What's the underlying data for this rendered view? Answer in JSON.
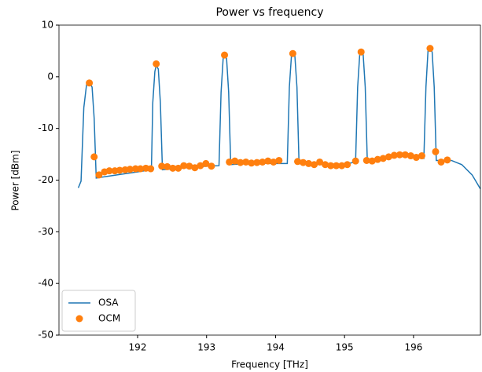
{
  "chart_data": {
    "type": "line",
    "title": "Power vs frequency",
    "x_label": "Frequency [THz]",
    "y_label": "Power [dBm]",
    "xlim": [
      190.86,
      196.97
    ],
    "ylim": [
      -50,
      10
    ],
    "xticks": [
      192,
      193,
      194,
      195,
      196
    ],
    "yticks": [
      -50,
      -40,
      -30,
      -20,
      -10,
      0,
      10
    ],
    "legend": "lower left",
    "series": [
      {
        "name": "OSA",
        "type": "line",
        "color": "#1f77b4",
        "x": [
          191.14,
          191.18,
          191.22,
          191.26,
          191.3,
          191.34,
          191.37,
          191.4,
          191.7,
          192.0,
          192.2,
          192.22,
          192.25,
          192.27,
          192.3,
          192.33,
          192.36,
          192.7,
          193.0,
          193.18,
          193.21,
          193.24,
          193.26,
          193.29,
          193.32,
          193.35,
          193.7,
          194.0,
          194.17,
          194.2,
          194.23,
          194.25,
          194.28,
          194.31,
          194.34,
          194.7,
          195.0,
          195.16,
          195.19,
          195.22,
          195.24,
          195.27,
          195.3,
          195.33,
          195.7,
          196.0,
          196.15,
          196.18,
          196.21,
          196.24,
          196.27,
          196.3,
          196.33,
          196.55,
          196.7,
          196.85,
          196.97
        ],
        "values": [
          -21.5,
          -20.2,
          -6,
          -1.5,
          -1,
          -2,
          -8,
          -19.6,
          -19.0,
          -18.4,
          -18.0,
          -5,
          1,
          2.2,
          1.5,
          -5,
          -18,
          -17.6,
          -17.3,
          -17.2,
          -3,
          3.5,
          4.3,
          3.5,
          -3,
          -17,
          -16.7,
          -16.8,
          -16.8,
          -2,
          4,
          4.6,
          4,
          -2,
          -16.6,
          -17.0,
          -16.9,
          -16.5,
          -2,
          4.3,
          5,
          4.3,
          -2,
          -16.3,
          -15.4,
          -15.5,
          -15.8,
          -2,
          5,
          5.5,
          4.8,
          -2,
          -16.2,
          -16.2,
          -17,
          -19,
          -21.7
        ]
      },
      {
        "name": "OCM",
        "type": "scatter",
        "color": "#ff7f0e",
        "x": [
          191.3,
          191.37,
          191.44,
          191.52,
          191.59,
          191.67,
          191.74,
          191.82,
          191.89,
          191.97,
          192.04,
          192.12,
          192.19,
          192.27,
          192.35,
          192.43,
          192.51,
          192.59,
          192.67,
          192.75,
          192.83,
          192.91,
          192.99,
          193.07,
          193.26,
          193.33,
          193.41,
          193.49,
          193.57,
          193.65,
          193.73,
          193.81,
          193.89,
          193.97,
          194.05,
          194.25,
          194.32,
          194.4,
          194.48,
          194.56,
          194.64,
          194.72,
          194.8,
          194.88,
          194.96,
          195.04,
          195.16,
          195.24,
          195.32,
          195.4,
          195.48,
          195.56,
          195.64,
          195.72,
          195.8,
          195.88,
          195.96,
          196.04,
          196.12,
          196.24,
          196.32,
          196.4,
          196.49
        ],
        "values": [
          -1.2,
          -15.5,
          -19,
          -18.4,
          -18.2,
          -18.2,
          -18.1,
          -18,
          -17.9,
          -17.8,
          -17.8,
          -17.7,
          -17.8,
          2.5,
          -17.3,
          -17.4,
          -17.7,
          -17.7,
          -17.2,
          -17.3,
          -17.6,
          -17.2,
          -16.8,
          -17.3,
          4.2,
          -16.5,
          -16.3,
          -16.6,
          -16.5,
          -16.7,
          -16.6,
          -16.5,
          -16.3,
          -16.5,
          -16.2,
          4.5,
          -16.4,
          -16.6,
          -16.8,
          -17.0,
          -16.5,
          -17.0,
          -17.2,
          -17.2,
          -17.2,
          -17.0,
          -16.3,
          4.8,
          -16.2,
          -16.3,
          -16.0,
          -15.8,
          -15.5,
          -15.2,
          -15.1,
          -15.1,
          -15.3,
          -15.6,
          -15.3,
          5.5,
          -14.5,
          -16.5,
          -16.1
        ]
      }
    ]
  }
}
